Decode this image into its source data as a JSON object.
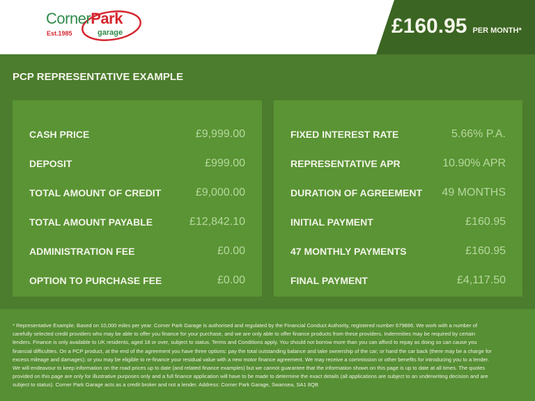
{
  "header": {
    "logo": {
      "corner": "Corner",
      "park": "Park",
      "est": "Est.1985",
      "garage": "garage"
    },
    "price": "£160.95",
    "per_month": "PER MONTH*"
  },
  "section_title": "PCP REPRESENTATIVE EXAMPLE",
  "left_panel": [
    {
      "label": "CASH PRICE",
      "value": "£9,999.00"
    },
    {
      "label": "DEPOSIT",
      "value": "£999.00"
    },
    {
      "label": "TOTAL AMOUNT OF CREDIT",
      "value": "£9,000.00"
    },
    {
      "label": "TOTAL AMOUNT PAYABLE",
      "value": "£12,842.10"
    },
    {
      "label": "ADMINISTRATION FEE",
      "value": "£0.00"
    },
    {
      "label": "OPTION TO PURCHASE FEE",
      "value": "£0.00"
    }
  ],
  "right_panel": [
    {
      "label": "FIXED INTEREST RATE",
      "value": "5.66% P.A."
    },
    {
      "label": "REPRESENTATIVE APR",
      "value": "10.90% APR"
    },
    {
      "label": "DURATION OF AGREEMENT",
      "value": "49 MONTHS"
    },
    {
      "label": "INITIAL PAYMENT",
      "value": "£160.95"
    },
    {
      "label": "47 MONTHLY PAYMENTS",
      "value": "£160.95"
    },
    {
      "label": "FINAL PAYMENT",
      "value": "£4,117.50"
    }
  ],
  "disclaimer": "* Representative Example. Based on 10,000 miles per year. Corner Park Garage is authorised and regulated by the Financial Conduct Authority, registered number 679886. We work with a number of carefully selected credit providers who may be able to offer you finance for your purchase, and we are only able to offer finance products from these providers. Indemnities may be required by certain lenders. Finance is only available to UK residents, aged 18 or over, subject to status. Terms and Conditions apply. You should not borrow more than you can afford to repay as doing so can cause you financial difficulties. On a PCP product, at the end of the agreement you have three options: pay the total outstanding balance and take ownership of the car; or hand the car back (there may be a charge for excess mileage and damages); or you may be eligible to re-finance your residual value with a new motor finance agreement. We may receive a commission or other benefits for introducing you to a lender. We will endeavour to keep information on the road prices up to date (and related finance examples) but we cannot guarantee that the information shown on this page is up to date at all times. The quotes provided on this page are only for illustrative purposes only and a full finance application will have to be made to determine the exact details (all applications are subject to an underwriting decision and are subject to status). Corner Park Garage acts as a credit broker and not a lender. Address: Corner Park Garage, Swansea, SA1 8QB",
  "colors": {
    "header_bg": "#3b6522",
    "page_bg": "#4c7c2d",
    "panel_bg": "#5a9434",
    "value_text": "#b7d89e",
    "logo_red": "#d5262e",
    "logo_green": "#2f8a4a"
  }
}
